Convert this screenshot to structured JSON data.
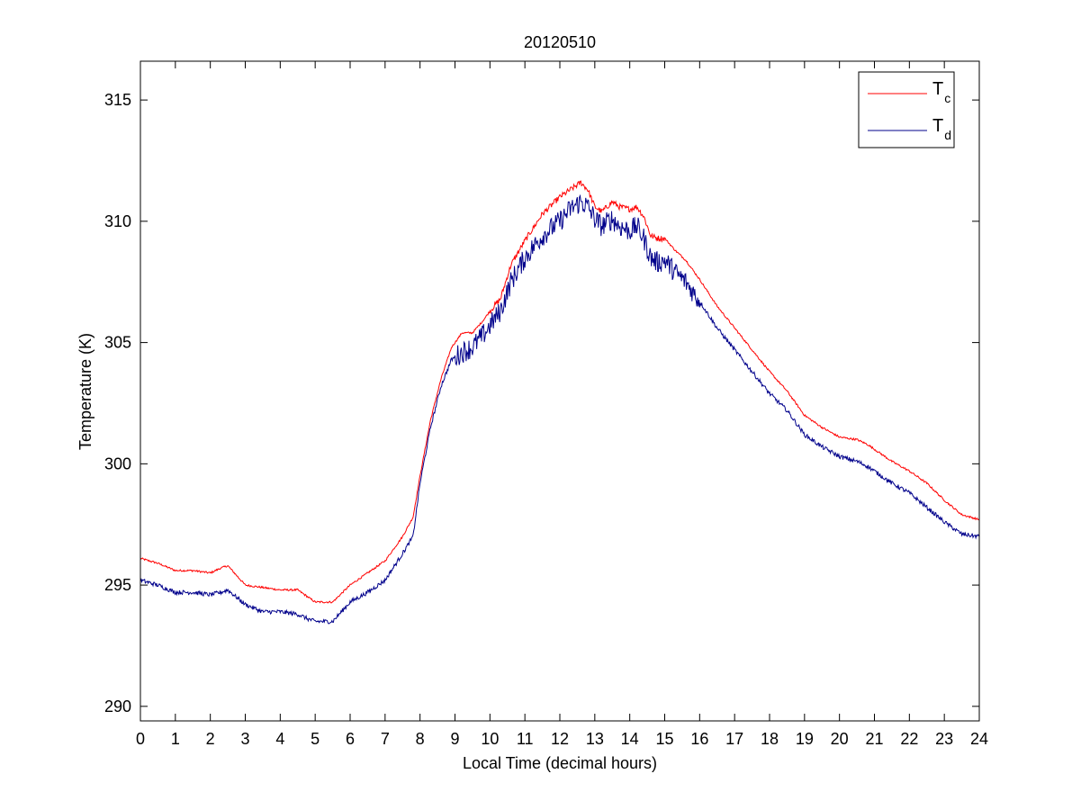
{
  "chart_data": {
    "type": "line",
    "title": "20120510",
    "xlabel": "Local Time (decimal hours)",
    "ylabel": "Temperature (K)",
    "xlim": [
      0,
      24
    ],
    "ylim": [
      289.4,
      316.6
    ],
    "xticks": [
      0,
      1,
      2,
      3,
      4,
      5,
      6,
      7,
      8,
      9,
      10,
      11,
      12,
      13,
      14,
      15,
      16,
      17,
      18,
      19,
      20,
      21,
      22,
      23,
      24
    ],
    "xtick_labels": [
      "0",
      "1",
      "2",
      "3",
      "4",
      "5",
      "6",
      "7",
      "8",
      "9",
      "10",
      "11",
      "12",
      "13",
      "14",
      "15",
      "16",
      "17",
      "18",
      "19",
      "20",
      "21",
      "22",
      "23",
      "24"
    ],
    "yticks": [
      290,
      295,
      300,
      305,
      310,
      315
    ],
    "ytick_labels": [
      "290",
      "295",
      "300",
      "305",
      "310",
      "315"
    ],
    "grid": false,
    "legend_position": "top-right",
    "series": [
      {
        "name": "T",
        "name_subscript": "c",
        "color": "#ff0000",
        "x": [
          0,
          0.5,
          1,
          1.5,
          2,
          2.3,
          2.5,
          3,
          3.5,
          4,
          4.5,
          4.8,
          5,
          5.5,
          6,
          6.5,
          7,
          7.5,
          7.8,
          8,
          8.3,
          8.6,
          8.9,
          9.2,
          9.5,
          9.8,
          10,
          10.3,
          10.6,
          11,
          11.5,
          12,
          12.3,
          12.6,
          12.8,
          13,
          13.2,
          13.5,
          13.7,
          14,
          14.2,
          14.4,
          14.6,
          14.8,
          15,
          15.3,
          15.6,
          16,
          16.5,
          17,
          17.5,
          18,
          18.5,
          19,
          19.5,
          20,
          20.5,
          20.8,
          21,
          21.5,
          22,
          22.5,
          23,
          23.5,
          24
        ],
        "y": [
          296.1,
          295.9,
          295.6,
          295.6,
          295.5,
          295.7,
          295.8,
          295.0,
          294.9,
          294.8,
          294.8,
          294.5,
          294.3,
          294.3,
          295.0,
          295.5,
          296.0,
          297.0,
          297.8,
          299.5,
          301.8,
          303.5,
          304.8,
          305.4,
          305.4,
          305.9,
          306.3,
          306.8,
          308.2,
          309.2,
          310.3,
          311.0,
          311.3,
          311.6,
          311.3,
          310.6,
          310.4,
          310.8,
          310.6,
          310.5,
          310.6,
          310.2,
          309.4,
          309.3,
          309.3,
          308.8,
          308.4,
          307.6,
          306.5,
          305.6,
          304.7,
          303.8,
          303.0,
          302.0,
          301.5,
          301.1,
          301.0,
          300.8,
          300.6,
          300.1,
          299.7,
          299.2,
          298.5,
          297.9,
          297.7
        ]
      },
      {
        "name": "T",
        "name_subscript": "d",
        "color": "#00008b",
        "x": [
          0,
          0.5,
          1,
          1.5,
          2,
          2.3,
          2.5,
          3,
          3.5,
          4,
          4.5,
          4.8,
          5,
          5.5,
          6,
          6.5,
          7,
          7.5,
          7.8,
          8,
          8.3,
          8.6,
          8.9,
          9.2,
          9.5,
          9.8,
          10,
          10.3,
          10.6,
          11,
          11.5,
          12,
          12.3,
          12.6,
          12.8,
          13,
          13.2,
          13.5,
          13.7,
          14,
          14.2,
          14.4,
          14.6,
          14.8,
          15,
          15.3,
          15.6,
          16,
          16.5,
          17,
          17.5,
          18,
          18.5,
          19,
          19.5,
          20,
          20.5,
          20.8,
          21,
          21.5,
          22,
          22.5,
          23,
          23.5,
          24
        ],
        "y": [
          295.2,
          295.0,
          294.7,
          294.7,
          294.6,
          294.7,
          294.8,
          294.2,
          293.9,
          293.9,
          293.8,
          293.6,
          293.5,
          293.5,
          294.3,
          294.7,
          295.2,
          296.3,
          297.0,
          299.2,
          301.5,
          303.2,
          304.3,
          304.6,
          304.8,
          305.3,
          305.7,
          306.3,
          307.5,
          308.5,
          309.4,
          310.0,
          310.5,
          310.8,
          310.6,
          310.1,
          309.8,
          310.1,
          309.8,
          309.6,
          309.8,
          309.3,
          308.5,
          308.3,
          308.4,
          307.9,
          307.5,
          306.7,
          305.6,
          304.7,
          303.8,
          302.9,
          302.2,
          301.2,
          300.7,
          300.3,
          300.1,
          299.9,
          299.7,
          299.2,
          298.8,
          298.2,
          297.6,
          297.1,
          297.0
        ]
      }
    ]
  }
}
